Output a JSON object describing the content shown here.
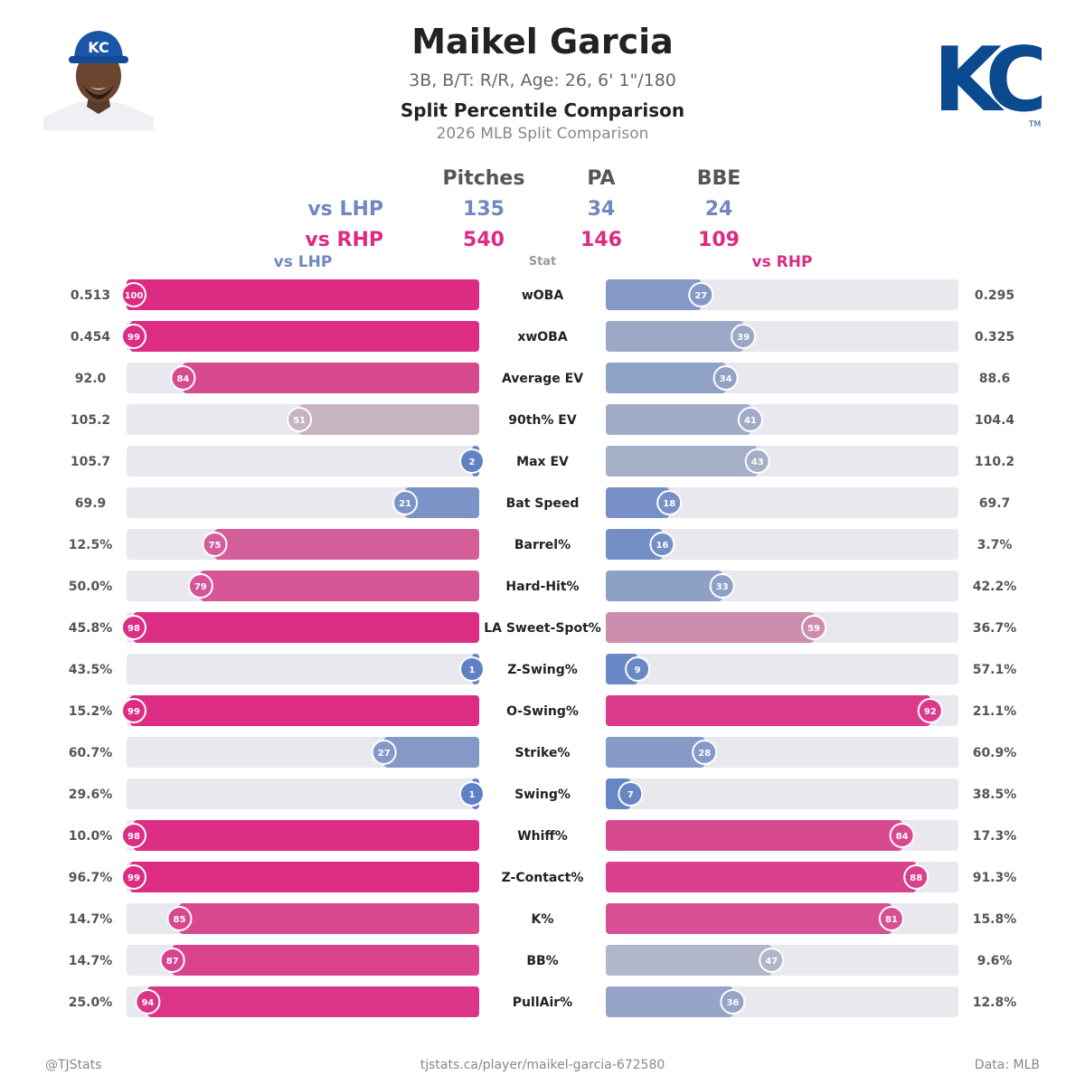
{
  "header": {
    "player_name": "Maikel Garcia",
    "player_info": "3B, B/T: R/R, Age: 26, 6' 1\"/180",
    "chart_title": "Split Percentile Comparison",
    "chart_subtitle": "2026 MLB Split Comparison",
    "team_logo_text": "KC",
    "trademark": "TM"
  },
  "summary": {
    "headers": [
      "Pitches",
      "PA",
      "BBE"
    ],
    "lhp_label": "vs LHP",
    "rhp_label": "vs RHP",
    "lhp_values": [
      "135",
      "34",
      "24"
    ],
    "rhp_values": [
      "540",
      "146",
      "109"
    ]
  },
  "columns": {
    "left": "vs LHP",
    "center": "Stat",
    "right": "vs RHP"
  },
  "footer": {
    "handle": "@TJStats",
    "url": "tjstats.ca/player/maikel-garcia-672580",
    "source": "Data: MLB"
  },
  "colors": {
    "high": "#dd2a82",
    "neutral": "#c4c4c8",
    "low": "#5f80c6",
    "track": "#e8e8ee",
    "lhp_text": "#7088c0",
    "rhp_text": "#dd2a82"
  },
  "chart_data": {
    "type": "bar",
    "orientation": "horizontal-butterfly",
    "xlim": [
      0,
      100
    ],
    "categories": [
      "wOBA",
      "xwOBA",
      "Average EV",
      "90th% EV",
      "Max EV",
      "Bat Speed",
      "Barrel%",
      "Hard-Hit%",
      "LA Sweet-Spot%",
      "Z-Swing%",
      "O-Swing%",
      "Strike%",
      "Swing%",
      "Whiff%",
      "Z-Contact%",
      "K%",
      "BB%",
      "PullAir%"
    ],
    "series": [
      {
        "name": "vs LHP",
        "percentiles": [
          100,
          99,
          84,
          51,
          2,
          21,
          75,
          79,
          98,
          1,
          99,
          27,
          1,
          98,
          99,
          85,
          87,
          94
        ],
        "values": [
          "0.513",
          "0.454",
          "92.0",
          "105.2",
          "105.7",
          "69.9",
          "12.5%",
          "50.0%",
          "45.8%",
          "43.5%",
          "15.2%",
          "60.7%",
          "29.6%",
          "10.0%",
          "96.7%",
          "14.7%",
          "14.7%",
          "25.0%"
        ]
      },
      {
        "name": "vs RHP",
        "percentiles": [
          27,
          39,
          34,
          41,
          43,
          18,
          16,
          33,
          59,
          9,
          92,
          28,
          7,
          84,
          88,
          81,
          47,
          36
        ],
        "values": [
          "0.295",
          "0.325",
          "88.6",
          "104.4",
          "110.2",
          "69.7",
          "3.7%",
          "42.2%",
          "36.7%",
          "57.1%",
          "21.1%",
          "60.9%",
          "38.5%",
          "17.3%",
          "91.3%",
          "15.8%",
          "9.6%",
          "12.8%"
        ]
      }
    ]
  }
}
